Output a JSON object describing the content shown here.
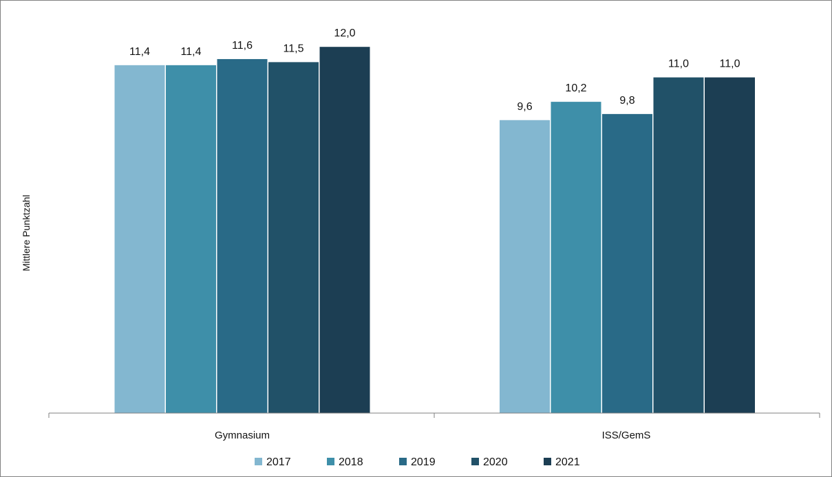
{
  "chart_data": {
    "type": "bar",
    "title": "",
    "ylabel": "Mittlere Punktzahl",
    "xlabel": "",
    "categories": [
      "Gymnasium",
      "ISS/GemS"
    ],
    "ylim": [
      0,
      12.6
    ],
    "grid": false,
    "legend_position": "bottom",
    "series": [
      {
        "name": "2017",
        "color": "#83b7d0",
        "values": [
          11.4,
          9.6
        ],
        "labels": [
          "11,4",
          "9,6"
        ]
      },
      {
        "name": "2018",
        "color": "#3e8fa9",
        "values": [
          11.4,
          10.2
        ],
        "labels": [
          "11,4",
          "10,2"
        ]
      },
      {
        "name": "2019",
        "color": "#296a87",
        "values": [
          11.6,
          9.8
        ],
        "labels": [
          "11,6",
          "9,8"
        ]
      },
      {
        "name": "2020",
        "color": "#215168",
        "values": [
          11.5,
          11.0
        ],
        "labels": [
          "11,5",
          "11,0"
        ]
      },
      {
        "name": "2021",
        "color": "#1c3e53",
        "values": [
          12.0,
          11.0
        ],
        "labels": [
          "12,0",
          "11,0"
        ]
      }
    ]
  }
}
